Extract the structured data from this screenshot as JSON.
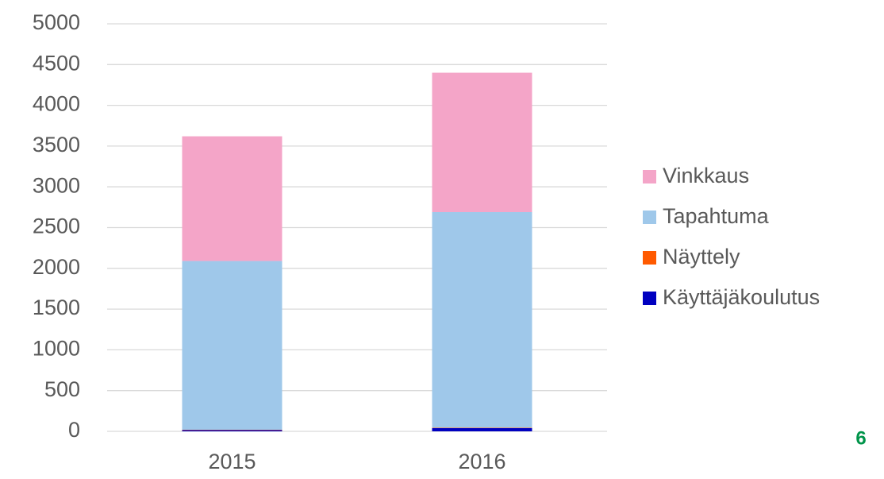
{
  "chart_data": {
    "type": "stacked_bar",
    "categories": [
      "2015",
      "2016"
    ],
    "series": [
      {
        "name": "Käyttäjäkoulutus",
        "color": "#0000c0",
        "values": [
          15,
          40
        ]
      },
      {
        "name": "Näyttely",
        "color": "#ff5a00",
        "values": [
          5,
          5
        ]
      },
      {
        "name": "Tapahtuma",
        "color": "#9fc8ea",
        "values": [
          2070,
          2645
        ]
      },
      {
        "name": "Vinkkaus",
        "color": "#f4a5c8",
        "values": [
          1530,
          1710
        ]
      }
    ],
    "ylim": [
      0,
      5000
    ],
    "yticks": [
      0,
      500,
      1000,
      1500,
      2000,
      2500,
      3000,
      3500,
      4000,
      4500,
      5000
    ],
    "grid": true,
    "legend": "right"
  },
  "page_number": "6"
}
